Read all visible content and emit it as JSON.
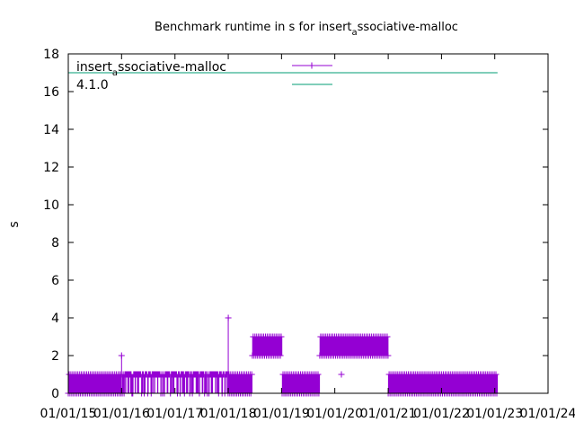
{
  "chart_data": {
    "type": "line",
    "title": {
      "main": "Benchmark runtime in s for insert",
      "sub": "a",
      "rest": "ssociative-malloc"
    },
    "ylabel": "s",
    "xlabel": "",
    "ylim": [
      0,
      18
    ],
    "yticks": [
      0,
      2,
      4,
      6,
      8,
      10,
      12,
      14,
      16,
      18
    ],
    "xlim": [
      "2015-01-01",
      "2024-01-01"
    ],
    "xticks": [
      {
        "label": "01/01/15",
        "value": "2015-01-01"
      },
      {
        "label": "01/01/16",
        "value": "2016-01-01"
      },
      {
        "label": "01/01/17",
        "value": "2017-01-01"
      },
      {
        "label": "01/01/18",
        "value": "2018-01-01"
      },
      {
        "label": "01/01/19",
        "value": "2019-01-01"
      },
      {
        "label": "01/01/20",
        "value": "2020-01-01"
      },
      {
        "label": "01/01/21",
        "value": "2021-01-01"
      },
      {
        "label": "01/01/22",
        "value": "2022-01-01"
      },
      {
        "label": "01/01/23",
        "value": "2023-01-01"
      },
      {
        "label": "01/01/24",
        "value": "2024-01-01"
      }
    ],
    "grid": false,
    "legend": "top-left",
    "series": [
      {
        "name": {
          "main": "insert",
          "sub": "a",
          "rest": "ssociative-malloc"
        },
        "color": "#9400d3",
        "style": "impulses-with-plus-markers",
        "segments": [
          {
            "start": "2015-01-01",
            "end": "2015-12-31",
            "pattern": "alternating",
            "low": 0,
            "high": 1
          },
          {
            "start": "2015-12-31",
            "end": "2017-12-31",
            "pattern": "mostly_high",
            "low": 0,
            "high": 1
          },
          {
            "start": "2017-12-31",
            "end": "2018-06-15",
            "pattern": "alternating",
            "low": 0,
            "high": 1
          },
          {
            "start": "2018-06-15",
            "end": "2019-01-05",
            "pattern": "alternating",
            "low": 2,
            "high": 3
          },
          {
            "start": "2019-01-05",
            "end": "2019-09-20",
            "pattern": "alternating",
            "low": 0,
            "high": 1
          },
          {
            "start": "2019-09-20",
            "end": "2021-01-01",
            "pattern": "alternating",
            "low": 2,
            "high": 3
          },
          {
            "start": "2021-01-01",
            "end": "2023-01-20",
            "pattern": "alternating",
            "low": 0,
            "high": 1
          }
        ],
        "outliers": [
          {
            "x": "2016-01-01",
            "y": 2
          },
          {
            "x": "2018-01-01",
            "y": 4
          },
          {
            "x": "2020-02-15",
            "y": 1
          }
        ]
      },
      {
        "name": "4.1.0",
        "color": "#009e73",
        "style": "line",
        "points": [
          {
            "x": "2015-01-01",
            "y": 17
          },
          {
            "x": "2023-01-20",
            "y": 17
          }
        ]
      }
    ]
  }
}
